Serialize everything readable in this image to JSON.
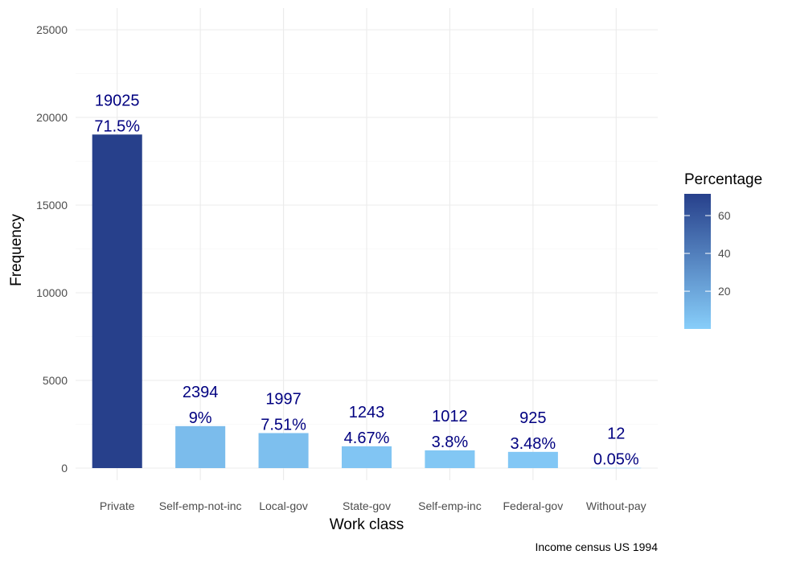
{
  "chart_data": {
    "type": "bar",
    "categories": [
      "Private",
      "Self-emp-not-inc",
      "Local-gov",
      "State-gov",
      "Self-emp-inc",
      "Federal-gov",
      "Without-pay"
    ],
    "values": [
      19025,
      2394,
      1997,
      1243,
      1012,
      925,
      12
    ],
    "percent_labels": [
      "71.5%",
      "9%",
      "7.51%",
      "4.67%",
      "3.8%",
      "3.48%",
      "0.05%"
    ],
    "percentages": [
      71.5,
      9,
      7.51,
      4.67,
      3.8,
      3.48,
      0.05
    ],
    "xlabel": "Work class",
    "ylabel": "Frequency",
    "ylim": [
      0,
      26000
    ],
    "yticks": [
      0,
      5000,
      10000,
      15000,
      20000,
      25000
    ],
    "caption": "Income census US 1994",
    "grid": true,
    "legend": {
      "title": "Percentage",
      "position": "right",
      "ticks": [
        20,
        40,
        60
      ],
      "range": [
        0.05,
        71.5
      ],
      "low_color": "#87CEFA",
      "high_color": "#27408B"
    },
    "label_color": "#000080"
  }
}
